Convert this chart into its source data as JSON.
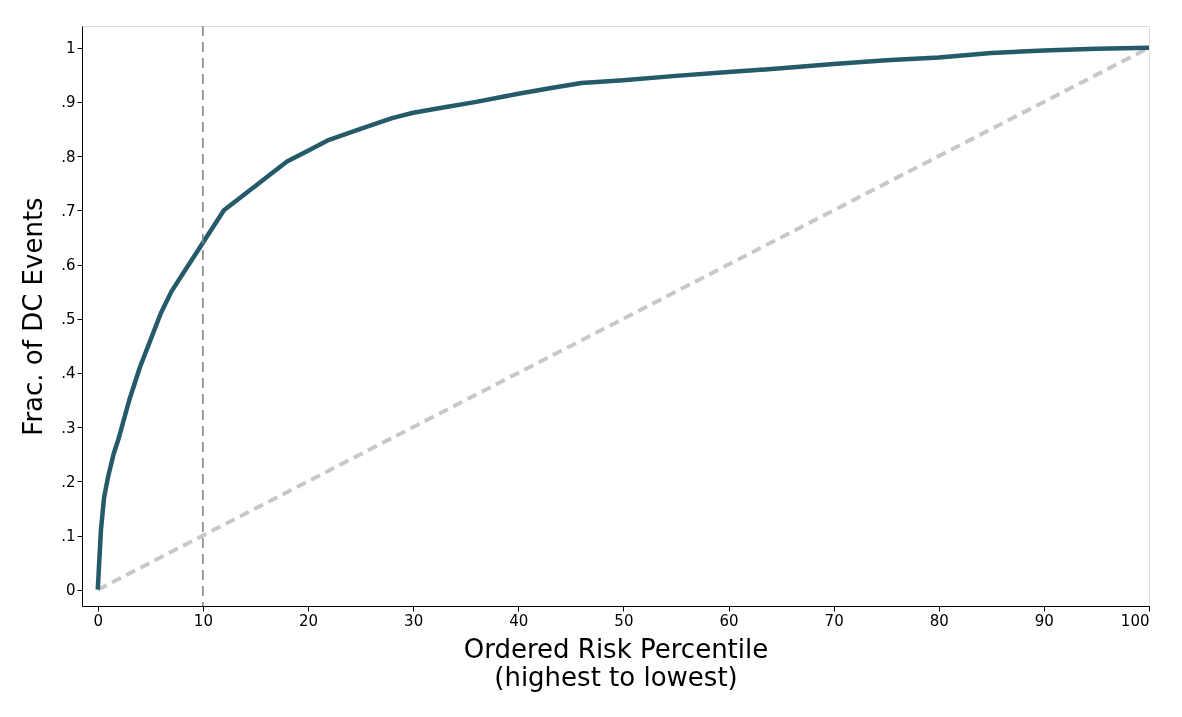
{
  "chart_data": {
    "type": "line",
    "xlabel": "Ordered Risk Percentile\n(highest to lowest)",
    "ylabel": "Frac. of DC Events",
    "xlim": [
      -1.5,
      100
    ],
    "xticks": [
      0,
      10,
      20,
      30,
      40,
      50,
      60,
      70,
      80,
      90,
      100
    ],
    "ylim": [
      -0.03,
      1.04
    ],
    "yticks": [
      0,
      {
        "value": 0.1,
        "label": ".1"
      },
      {
        "value": 0.2,
        "label": ".2"
      },
      {
        "value": 0.3,
        "label": ".3"
      },
      {
        "value": 0.4,
        "label": ".4"
      },
      {
        "value": 0.5,
        "label": ".5"
      },
      {
        "value": 0.6,
        "label": ".6"
      },
      {
        "value": 0.7,
        "label": ".7"
      },
      {
        "value": 0.8,
        "label": ".8"
      },
      {
        "value": 0.9,
        "label": ".9"
      },
      1
    ],
    "grid": false,
    "marker": "none",
    "series": [
      {
        "color": "#c8c8c8",
        "line_style": "dashed",
        "x": [
          0,
          100
        ],
        "values": [
          0,
          1
        ]
      },
      {
        "color": "#245a6a",
        "line_style": "solid",
        "x": [
          0,
          0.3,
          0.6,
          1,
          1.5,
          2,
          3,
          4,
          5,
          6,
          7,
          8,
          9,
          10,
          11,
          12,
          14,
          16,
          18,
          20,
          22,
          25,
          28,
          30,
          33,
          36,
          40,
          43,
          46,
          50,
          55,
          60,
          65,
          70,
          75,
          80,
          85,
          90,
          95,
          100
        ],
        "values": [
          0,
          0.11,
          0.17,
          0.21,
          0.25,
          0.28,
          0.35,
          0.41,
          0.46,
          0.51,
          0.55,
          0.58,
          0.61,
          0.64,
          0.67,
          0.7,
          0.73,
          0.76,
          0.79,
          0.81,
          0.83,
          0.85,
          0.87,
          0.88,
          0.89,
          0.9,
          0.915,
          0.925,
          0.935,
          0.94,
          0.948,
          0.955,
          0.962,
          0.97,
          0.977,
          0.982,
          0.99,
          0.995,
          0.998,
          1
        ]
      }
    ],
    "ref_lines": [
      {
        "axis": "x",
        "value": 10,
        "color": "#808080",
        "line_style": "dashed"
      }
    ]
  }
}
